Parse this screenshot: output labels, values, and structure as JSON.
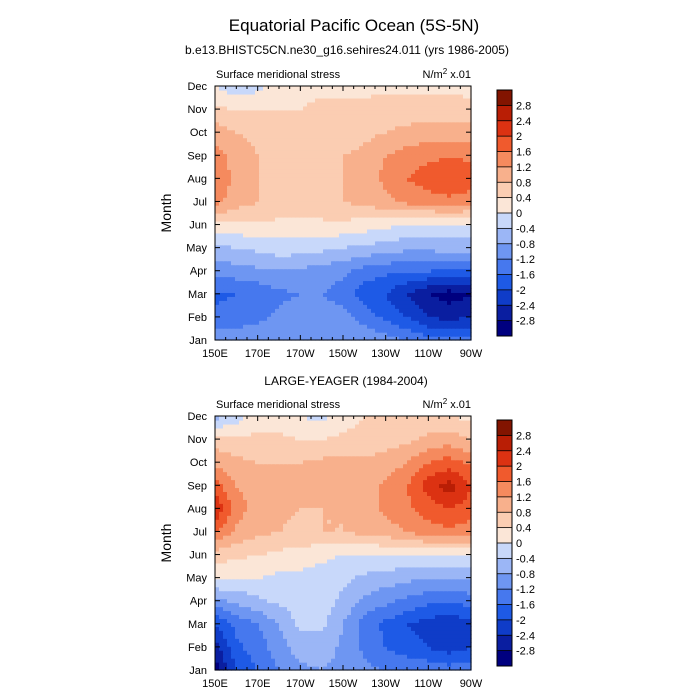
{
  "figure": {
    "title": "Equatorial Pacific Ocean (5S-5N)"
  },
  "levels": [
    -2.8,
    -2.4,
    -2,
    -1.6,
    -1.2,
    -0.8,
    -0.4,
    0,
    0.4,
    0.8,
    1.2,
    1.6,
    2,
    2.4,
    2.8
  ],
  "palette": [
    "#00007f",
    "#0a1ea0",
    "#0f3cc8",
    "#1e5ae6",
    "#4678ee",
    "#6e96f2",
    "#9bb6f6",
    "#c8d8fa",
    "#fbe6d7",
    "#fbcdb2",
    "#f8b08c",
    "#f58a5e",
    "#f05a2d",
    "#dc3212",
    "#b91e05",
    "#821400"
  ],
  "chart_data": [
    {
      "type": "heatmap",
      "subtitle": "b.e13.BHISTC5CN.ne30_g16.sehires24.011 (yrs 1986-2005)",
      "left_label": "Surface meridional stress",
      "right_label_base": "N/m",
      "right_label_sup": "2",
      "right_label_tail": " x.01",
      "ylabel": "Month",
      "x_ticks": [
        "150E",
        "170E",
        "170W",
        "150W",
        "130W",
        "110W",
        "90W"
      ],
      "y_ticks": [
        "Jan",
        "Feb",
        "Mar",
        "Apr",
        "May",
        "Jun",
        "Jul",
        "Aug",
        "Sep",
        "Oct",
        "Nov",
        "Dec"
      ],
      "x": [
        150,
        160,
        170,
        180,
        190,
        200,
        210,
        220,
        230,
        240,
        250,
        260,
        270
      ],
      "y": [
        "Jan",
        "Feb",
        "Mar",
        "Apr",
        "May",
        "Jun",
        "Jul",
        "Aug",
        "Sep",
        "Oct",
        "Nov",
        "Dec"
      ],
      "z": [
        [
          -0.9,
          -1.0,
          -0.9,
          -0.9,
          -0.8,
          -0.8,
          -0.8,
          -0.8,
          -1.0,
          -1.2,
          -1.4,
          -1.5,
          -1.4
        ],
        [
          -1.5,
          -1.4,
          -1.3,
          -1.1,
          -1.0,
          -1.0,
          -1.0,
          -1.4,
          -1.7,
          -2.0,
          -2.4,
          -2.5,
          -2.4
        ],
        [
          -1.7,
          -1.6,
          -1.5,
          -1.3,
          -1.2,
          -1.2,
          -1.4,
          -1.8,
          -2.0,
          -2.4,
          -2.8,
          -3.0,
          -2.8
        ],
        [
          -1.0,
          -1.0,
          -0.9,
          -0.8,
          -0.9,
          -1.0,
          -1.1,
          -1.4,
          -1.5,
          -1.6,
          -1.6,
          -1.7,
          -1.6
        ],
        [
          -0.5,
          -0.4,
          -0.3,
          -0.2,
          -0.2,
          -0.3,
          -0.4,
          -0.5,
          -0.6,
          -0.7,
          -0.7,
          -0.6,
          -0.6
        ],
        [
          0.3,
          0.3,
          0.3,
          0.3,
          0.3,
          0.3,
          0.3,
          0.2,
          0.1,
          0.0,
          -0.1,
          -0.1,
          -0.1
        ],
        [
          1.3,
          1.0,
          0.8,
          0.7,
          0.7,
          0.7,
          0.8,
          0.9,
          1.1,
          1.3,
          1.4,
          1.5,
          1.4
        ],
        [
          1.5,
          1.1,
          0.8,
          0.7,
          0.7,
          0.7,
          0.8,
          1.0,
          1.3,
          1.6,
          1.8,
          1.9,
          1.8
        ],
        [
          1.4,
          1.0,
          0.8,
          0.7,
          0.7,
          0.7,
          0.8,
          0.9,
          1.2,
          1.4,
          1.5,
          1.6,
          1.5
        ],
        [
          1.0,
          0.8,
          0.7,
          0.6,
          0.6,
          0.6,
          0.6,
          0.7,
          0.8,
          0.9,
          1.0,
          1.0,
          1.0
        ],
        [
          0.5,
          0.4,
          0.4,
          0.4,
          0.4,
          0.5,
          0.5,
          0.5,
          0.6,
          0.6,
          0.6,
          0.6,
          0.5
        ],
        [
          0.0,
          -0.3,
          -0.1,
          0.2,
          0.3,
          0.3,
          0.3,
          0.3,
          0.3,
          0.3,
          0.3,
          0.3,
          0.3
        ]
      ]
    },
    {
      "type": "heatmap",
      "subtitle": "LARGE-YEAGER (1984-2004)",
      "left_label": "Surface meridional stress",
      "right_label_base": "N/m",
      "right_label_sup": "2",
      "right_label_tail": " x.01",
      "ylabel": "Month",
      "x_ticks": [
        "150E",
        "170E",
        "170W",
        "150W",
        "130W",
        "110W",
        "90W"
      ],
      "y_ticks": [
        "Jan",
        "Feb",
        "Mar",
        "Apr",
        "May",
        "Jun",
        "Jul",
        "Aug",
        "Sep",
        "Oct",
        "Nov",
        "Dec"
      ],
      "x": [
        150,
        160,
        170,
        180,
        190,
        200,
        210,
        220,
        230,
        240,
        250,
        260,
        270
      ],
      "y": [
        "Jan",
        "Feb",
        "Mar",
        "Apr",
        "May",
        "Jun",
        "Jul",
        "Aug",
        "Sep",
        "Oct",
        "Nov",
        "Dec"
      ],
      "z": [
        [
          -3.0,
          -2.0,
          -1.6,
          -1.2,
          -0.9,
          -0.8,
          -0.9,
          -1.1,
          -1.2,
          -1.3,
          -1.3,
          -1.4,
          -1.3
        ],
        [
          -2.6,
          -1.7,
          -1.4,
          -1.0,
          -0.6,
          -0.6,
          -0.9,
          -1.3,
          -1.6,
          -1.8,
          -2.0,
          -2.2,
          -2.0
        ],
        [
          -2.0,
          -1.5,
          -1.2,
          -0.8,
          -0.3,
          -0.3,
          -0.8,
          -1.4,
          -1.7,
          -2.0,
          -2.2,
          -2.3,
          -2.1
        ],
        [
          -1.0,
          -0.7,
          -0.5,
          -0.3,
          -0.2,
          -0.2,
          -0.5,
          -0.9,
          -1.1,
          -1.3,
          -1.5,
          -1.6,
          -1.4
        ],
        [
          0.1,
          0.0,
          0.0,
          -0.1,
          -0.1,
          -0.2,
          -0.3,
          -0.5,
          -0.6,
          -0.7,
          -0.8,
          -0.8,
          -0.7
        ],
        [
          0.6,
          0.5,
          0.4,
          0.3,
          0.2,
          0.1,
          0.0,
          0.0,
          0.0,
          0.0,
          0.0,
          0.0,
          0.0
        ],
        [
          1.6,
          1.1,
          0.9,
          0.8,
          0.7,
          0.8,
          0.8,
          0.9,
          1.0,
          1.2,
          1.4,
          1.5,
          1.4
        ],
        [
          2.4,
          1.4,
          1.0,
          0.9,
          0.8,
          0.8,
          0.8,
          1.0,
          1.3,
          1.5,
          1.8,
          2.0,
          1.8
        ],
        [
          1.8,
          1.2,
          1.0,
          0.9,
          0.8,
          0.9,
          0.9,
          1.0,
          1.3,
          1.6,
          2.2,
          2.6,
          2.0
        ],
        [
          1.1,
          0.9,
          0.8,
          0.8,
          0.8,
          0.9,
          0.9,
          0.9,
          1.0,
          1.2,
          1.6,
          1.8,
          1.5
        ],
        [
          0.6,
          0.5,
          0.5,
          0.5,
          0.4,
          0.4,
          0.5,
          0.5,
          0.6,
          0.7,
          0.9,
          1.0,
          0.8
        ],
        [
          -0.6,
          -0.2,
          0.2,
          0.2,
          0.0,
          -0.1,
          0.2,
          0.4,
          0.5,
          0.5,
          0.5,
          0.4,
          0.3
        ]
      ]
    }
  ]
}
